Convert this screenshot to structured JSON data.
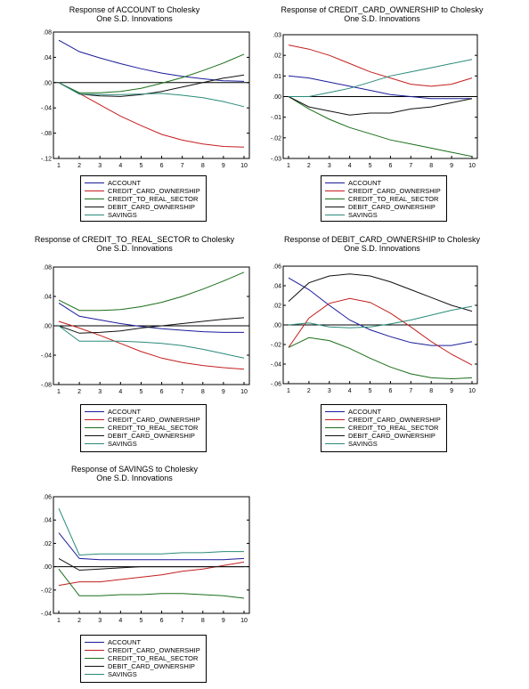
{
  "series_styles": [
    {
      "name": "ACCOUNT",
      "color": "#1a1a9a"
    },
    {
      "name": "CREDIT_CARD_OWNERSHIP",
      "color": "#c41e1e"
    },
    {
      "name": "CREDIT_TO_REAL_SECTOR",
      "color": "#1a6e1a"
    },
    {
      "name": "DEBIT_CARD_OWNERSHIP",
      "color": "#111111"
    },
    {
      "name": "SAVINGS",
      "color": "#2a8a7a"
    }
  ],
  "chart_data": [
    {
      "type": "line",
      "title": "Response of ACCOUNT to Cholesky\nOne S.D. Innovations",
      "x": [
        1,
        2,
        3,
        4,
        5,
        6,
        7,
        8,
        9,
        10
      ],
      "ylim": [
        -0.12,
        0.08
      ],
      "yticks": [
        -0.12,
        -0.08,
        -0.04,
        0.0,
        0.04,
        0.08
      ],
      "ytick_labels": [
        "-.12",
        "-.08",
        "-.04",
        ".00",
        ".04",
        ".08"
      ],
      "legend": "below",
      "grid": false,
      "series": [
        {
          "name": "ACCOUNT",
          "values": [
            0.067,
            0.049,
            0.039,
            0.03,
            0.022,
            0.015,
            0.01,
            0.006,
            0.003,
            0.002
          ]
        },
        {
          "name": "CREDIT_CARD_OWNERSHIP",
          "values": [
            0.0,
            -0.017,
            -0.035,
            -0.053,
            -0.068,
            -0.082,
            -0.091,
            -0.097,
            -0.101,
            -0.102
          ]
        },
        {
          "name": "CREDIT_TO_REAL_SECTOR",
          "values": [
            0.0,
            -0.016,
            -0.016,
            -0.014,
            -0.009,
            -0.001,
            0.008,
            0.019,
            0.031,
            0.045
          ]
        },
        {
          "name": "DEBIT_CARD_OWNERSHIP",
          "values": [
            0.0,
            -0.018,
            -0.021,
            -0.022,
            -0.019,
            -0.014,
            -0.007,
            0.0,
            0.007,
            0.012
          ]
        },
        {
          "name": "SAVINGS",
          "values": [
            0.0,
            -0.018,
            -0.019,
            -0.019,
            -0.018,
            -0.017,
            -0.02,
            -0.024,
            -0.03,
            -0.038
          ]
        }
      ]
    },
    {
      "type": "line",
      "title": "Response of CREDIT_CARD_OWNERSHIP to Cholesky\nOne S.D. Innovations",
      "x": [
        1,
        2,
        3,
        4,
        5,
        6,
        7,
        8,
        9,
        10
      ],
      "ylim": [
        -0.03,
        0.03
      ],
      "yticks": [
        -0.03,
        -0.02,
        -0.01,
        0.0,
        0.01,
        0.02,
        0.03
      ],
      "ytick_labels": [
        "-.03",
        "-.02",
        "-.01",
        ".00",
        ".01",
        ".02",
        ".03"
      ],
      "legend": "below",
      "grid": false,
      "series": [
        {
          "name": "ACCOUNT",
          "values": [
            0.01,
            0.009,
            0.007,
            0.005,
            0.003,
            0.001,
            0.0,
            -0.001,
            -0.001,
            -0.001
          ]
        },
        {
          "name": "CREDIT_CARD_OWNERSHIP",
          "values": [
            0.025,
            0.023,
            0.02,
            0.016,
            0.012,
            0.009,
            0.006,
            0.005,
            0.006,
            0.009
          ]
        },
        {
          "name": "CREDIT_TO_REAL_SECTOR",
          "values": [
            0.0,
            -0.006,
            -0.011,
            -0.015,
            -0.018,
            -0.021,
            -0.023,
            -0.025,
            -0.027,
            -0.029
          ]
        },
        {
          "name": "DEBIT_CARD_OWNERSHIP",
          "values": [
            0.0,
            -0.005,
            -0.007,
            -0.009,
            -0.008,
            -0.008,
            -0.006,
            -0.005,
            -0.003,
            -0.001
          ]
        },
        {
          "name": "SAVINGS",
          "values": [
            0.0,
            0.0,
            0.002,
            0.004,
            0.007,
            0.01,
            0.012,
            0.014,
            0.016,
            0.018
          ]
        }
      ]
    },
    {
      "type": "line",
      "title": "Response of CREDIT_TO_REAL_SECTOR to Cholesky\nOne S.D. Innovations",
      "x": [
        1,
        2,
        3,
        4,
        5,
        6,
        7,
        8,
        9,
        10
      ],
      "ylim": [
        -0.08,
        0.08
      ],
      "yticks": [
        -0.08,
        -0.04,
        0.0,
        0.04,
        0.08
      ],
      "ytick_labels": [
        "-.08",
        "-.04",
        ".00",
        ".04",
        ".08"
      ],
      "legend": "below",
      "grid": false,
      "series": [
        {
          "name": "ACCOUNT",
          "values": [
            0.031,
            0.013,
            0.008,
            0.003,
            -0.001,
            -0.004,
            -0.006,
            -0.008,
            -0.009,
            -0.009
          ]
        },
        {
          "name": "CREDIT_CARD_OWNERSHIP",
          "values": [
            0.006,
            -0.003,
            -0.013,
            -0.024,
            -0.035,
            -0.044,
            -0.05,
            -0.054,
            -0.057,
            -0.059
          ]
        },
        {
          "name": "CREDIT_TO_REAL_SECTOR",
          "values": [
            0.035,
            0.021,
            0.021,
            0.022,
            0.026,
            0.032,
            0.04,
            0.05,
            0.061,
            0.073
          ]
        },
        {
          "name": "DEBIT_CARD_OWNERSHIP",
          "values": [
            0.0,
            -0.01,
            -0.009,
            -0.007,
            -0.003,
            0.0,
            0.003,
            0.006,
            0.009,
            0.011
          ]
        },
        {
          "name": "SAVINGS",
          "values": [
            0.0,
            -0.021,
            -0.021,
            -0.021,
            -0.022,
            -0.024,
            -0.027,
            -0.032,
            -0.038,
            -0.044
          ]
        }
      ]
    },
    {
      "type": "line",
      "title": "Response of DEBIT_CARD_OWNERSHIP to Cholesky\nOne S.D. Innovations",
      "x": [
        1,
        2,
        3,
        4,
        5,
        6,
        7,
        8,
        9,
        10
      ],
      "ylim": [
        -0.06,
        0.06
      ],
      "yticks": [
        -0.06,
        -0.04,
        -0.02,
        0.0,
        0.02,
        0.04,
        0.06
      ],
      "ytick_labels": [
        "-.06",
        "-.04",
        "-.02",
        ".00",
        ".02",
        ".04",
        ".06"
      ],
      "legend": "below",
      "grid": false,
      "series": [
        {
          "name": "ACCOUNT",
          "values": [
            0.048,
            0.036,
            0.02,
            0.005,
            -0.005,
            -0.012,
            -0.018,
            -0.021,
            -0.021,
            -0.017
          ]
        },
        {
          "name": "CREDIT_CARD_OWNERSHIP",
          "values": [
            -0.023,
            0.007,
            0.022,
            0.027,
            0.023,
            0.012,
            -0.002,
            -0.017,
            -0.03,
            -0.041
          ]
        },
        {
          "name": "CREDIT_TO_REAL_SECTOR",
          "values": [
            -0.023,
            -0.013,
            -0.016,
            -0.024,
            -0.034,
            -0.043,
            -0.05,
            -0.054,
            -0.055,
            -0.054
          ]
        },
        {
          "name": "DEBIT_CARD_OWNERSHIP",
          "values": [
            0.024,
            0.043,
            0.05,
            0.052,
            0.05,
            0.044,
            0.036,
            0.028,
            0.02,
            0.014
          ]
        },
        {
          "name": "SAVINGS",
          "values": [
            0.0,
            0.002,
            -0.002,
            -0.003,
            -0.002,
            0.001,
            0.005,
            0.01,
            0.015,
            0.019
          ]
        }
      ]
    },
    {
      "type": "line",
      "title": "Response of SAVINGS to Cholesky\nOne S.D. Innovations",
      "x": [
        1,
        2,
        3,
        4,
        5,
        6,
        7,
        8,
        9,
        10
      ],
      "ylim": [
        -0.04,
        0.06
      ],
      "yticks": [
        -0.04,
        -0.02,
        0.0,
        0.02,
        0.04,
        0.06
      ],
      "ytick_labels": [
        "-.04",
        "-.02",
        ".00",
        ".02",
        ".04",
        ".06"
      ],
      "legend": "below",
      "grid": false,
      "series": [
        {
          "name": "ACCOUNT",
          "values": [
            0.029,
            0.007,
            0.006,
            0.006,
            0.006,
            0.006,
            0.006,
            0.006,
            0.006,
            0.007
          ]
        },
        {
          "name": "CREDIT_CARD_OWNERSHIP",
          "values": [
            -0.016,
            -0.013,
            -0.013,
            -0.011,
            -0.009,
            -0.007,
            -0.004,
            -0.002,
            0.001,
            0.004
          ]
        },
        {
          "name": "CREDIT_TO_REAL_SECTOR",
          "values": [
            -0.002,
            -0.025,
            -0.025,
            -0.024,
            -0.024,
            -0.023,
            -0.023,
            -0.024,
            -0.025,
            -0.027
          ]
        },
        {
          "name": "DEBIT_CARD_OWNERSHIP",
          "values": [
            0.007,
            -0.003,
            -0.002,
            -0.001,
            0.0,
            0.0,
            0.0,
            0.0,
            0.0,
            0.0
          ]
        },
        {
          "name": "SAVINGS",
          "values": [
            0.05,
            0.01,
            0.011,
            0.011,
            0.011,
            0.011,
            0.012,
            0.012,
            0.013,
            0.013
          ]
        }
      ]
    }
  ]
}
